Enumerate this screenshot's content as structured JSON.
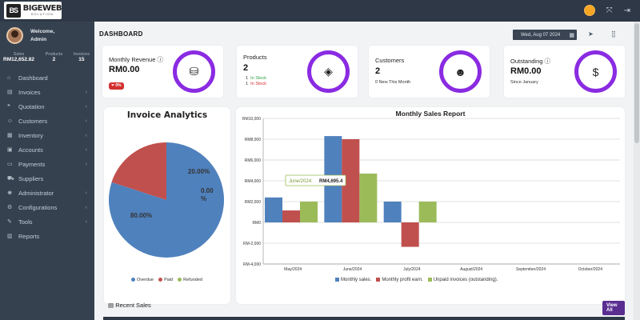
{
  "brand": {
    "logo_mark": "BS",
    "name": "BIGEWEB",
    "tagline": "SOLUTION"
  },
  "topbar": {
    "icons": [
      "user-avatar",
      "fullscreen-icon",
      "logout-icon"
    ]
  },
  "profile": {
    "welcome": "Welcome,",
    "role": "Admin"
  },
  "stats": [
    {
      "label": "Sales",
      "value": "RM12,652.82"
    },
    {
      "label": "Products",
      "value": "2"
    },
    {
      "label": "Invoices",
      "value": "15"
    }
  ],
  "nav": [
    {
      "label": "Dashboard",
      "icon": "home-icon",
      "chevron": false
    },
    {
      "label": "Invoices",
      "icon": "invoice-icon",
      "chevron": true
    },
    {
      "label": "Quotation",
      "icon": "quote-icon",
      "chevron": true
    },
    {
      "label": "Customers",
      "icon": "customers-icon",
      "chevron": true
    },
    {
      "label": "Inventory",
      "icon": "inventory-icon",
      "chevron": true
    },
    {
      "label": "Accounts",
      "icon": "accounts-icon",
      "chevron": true
    },
    {
      "label": "Payments",
      "icon": "payments-icon",
      "chevron": true
    },
    {
      "label": "Suppliers",
      "icon": "suppliers-icon",
      "chevron": false
    },
    {
      "label": "Administrator",
      "icon": "admin-icon",
      "chevron": true
    },
    {
      "label": "Configurations",
      "icon": "config-icon",
      "chevron": true
    },
    {
      "label": "Tools",
      "icon": "tools-icon",
      "chevron": true
    },
    {
      "label": "Reports",
      "icon": "reports-icon",
      "chevron": false
    }
  ],
  "header": {
    "title": "DASHBOARD",
    "date": "Wed, Aug 07 2024"
  },
  "cards": {
    "revenue": {
      "title": "Monthly Revenue",
      "value": "RM0.00",
      "badge": "0%"
    },
    "products": {
      "title": "Products",
      "value": "2",
      "in_stock_count": "1",
      "in_stock_label": "In Stock",
      "out_stock_count": "1",
      "out_stock_label": "In Stock"
    },
    "customers": {
      "title": "Customers",
      "value": "2",
      "sub": "0 New This Month"
    },
    "outstanding": {
      "title": "Outstanding",
      "value": "RM0.00",
      "sub": "Since January"
    }
  },
  "invoice_analytics": {
    "title": "Invoice Analytics",
    "legend": [
      "Overdue",
      "Paid",
      "Refunded"
    ]
  },
  "sales_report": {
    "title": "Monthly Sales Report",
    "tooltip_label": "June/2024:",
    "tooltip_value": "RM4,695.4",
    "legend": [
      "Monthly sales.",
      "Monthly profit earn.",
      "Unpaid invoices (outstanding)."
    ]
  },
  "recent": {
    "title": "Recent Sales",
    "button": "View All"
  },
  "chart_data": [
    {
      "type": "pie",
      "title": "Invoice Analytics",
      "labels": [
        "Overdue",
        "Paid",
        "Refunded"
      ],
      "values": [
        80.0,
        20.0,
        0.0
      ],
      "display": [
        "80.00%",
        "20.00%",
        "0.00 %"
      ],
      "colors": [
        "#4f81bd",
        "#c0504d",
        "#9bbb59"
      ]
    },
    {
      "type": "bar",
      "title": "Monthly Sales Report",
      "categories": [
        "May/2024",
        "June/2024",
        "July/2024",
        "August/2024",
        "September/2024",
        "October/2024"
      ],
      "series": [
        {
          "name": "Monthly sales.",
          "color": "#4f81bd",
          "values": [
            2400,
            8300,
            2000,
            0,
            0,
            0
          ]
        },
        {
          "name": "Monthly profit earn.",
          "color": "#c0504d",
          "values": [
            1150,
            8000,
            -2350,
            0,
            0,
            0
          ]
        },
        {
          "name": "Unpaid invoices (outstanding).",
          "color": "#9bbb59",
          "values": [
            2000,
            4695.4,
            2000,
            0,
            0,
            0
          ]
        }
      ],
      "ylim": [
        -4000,
        10000
      ],
      "yticks": [
        10000,
        8000,
        6000,
        4000,
        2000,
        0,
        -2000,
        -4000
      ],
      "ytick_labels": [
        "RM10,000",
        "RM8,000",
        "RM6,000",
        "RM4,000",
        "RM2,000",
        "RM0",
        "RM-2,000",
        "RM-4,000"
      ]
    }
  ]
}
